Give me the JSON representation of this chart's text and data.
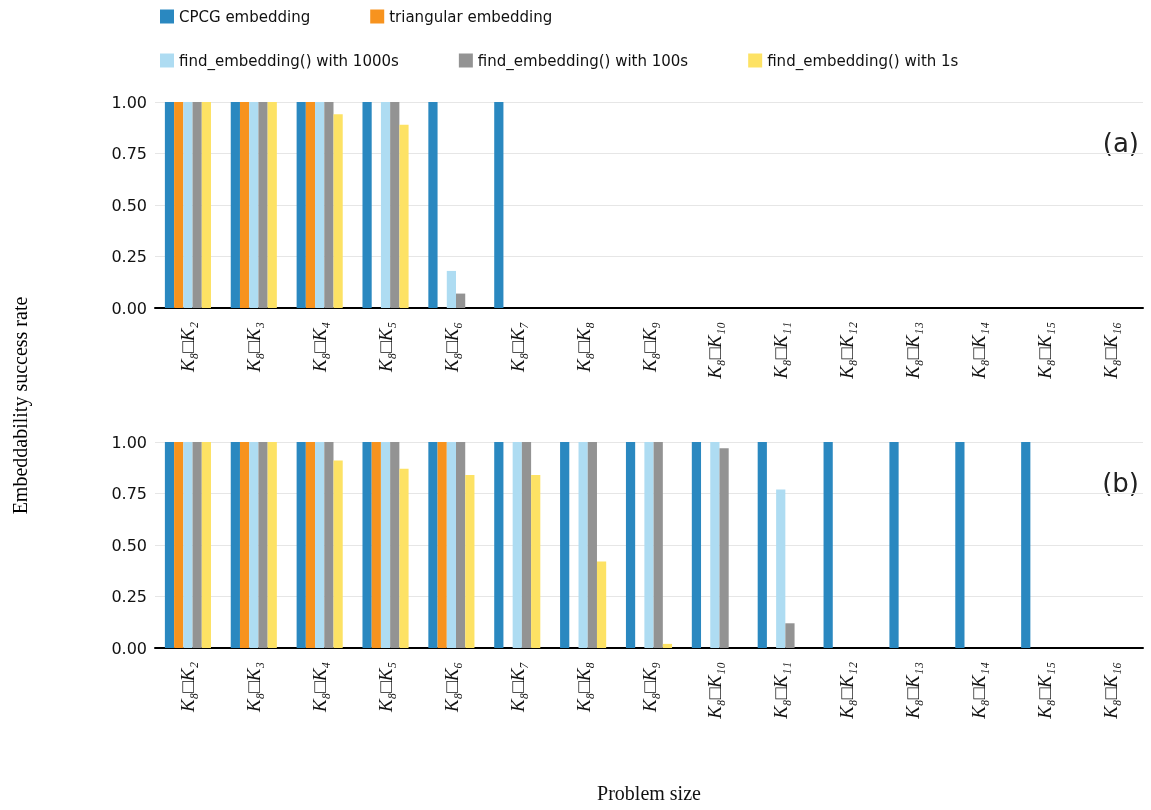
{
  "chart_data": [
    {
      "type": "bar",
      "categories": [
        "K₈□K₂",
        "K₈□K₃",
        "K₈□K₄",
        "K₈□K₅",
        "K₈□K₆",
        "K₈□K₇",
        "K₈□K₈",
        "K₈□K₉",
        "K₈□K₁₀",
        "K₈□K₁₁",
        "K₈□K₁₂",
        "K₈□K₁₃",
        "K₈□K₁₄",
        "K₈□K₁₅",
        "K₈□K₁₆"
      ],
      "series": [
        {
          "name": "CPCG embedding",
          "color": "#2a88c0",
          "values": [
            1,
            1,
            1,
            1,
            1,
            1,
            0,
            0,
            0,
            0,
            0,
            0,
            0,
            0,
            0
          ]
        },
        {
          "name": "triangular embedding",
          "color": "#f7931e",
          "values": [
            1,
            1,
            1,
            0,
            0,
            0,
            0,
            0,
            0,
            0,
            0,
            0,
            0,
            0,
            0
          ]
        },
        {
          "name": "find_embedding() with 1000s",
          "color": "#aedcf2",
          "values": [
            1,
            1,
            1,
            1,
            0.18,
            0,
            0,
            0,
            0,
            0,
            0,
            0,
            0,
            0,
            0
          ]
        },
        {
          "name": "find_embedding() with 100s",
          "color": "#939393",
          "values": [
            1,
            1,
            1,
            1,
            0.07,
            0,
            0,
            0,
            0,
            0,
            0,
            0,
            0,
            0,
            0
          ]
        },
        {
          "name": "find_embedding() with 1s",
          "color": "#fde264",
          "values": [
            1,
            1,
            0.94,
            0.89,
            0,
            0,
            0,
            0,
            0,
            0,
            0,
            0,
            0,
            0,
            0
          ]
        }
      ],
      "ylim": [
        0,
        1
      ],
      "yticks": [
        {
          "value": 0,
          "label": "0.00"
        },
        {
          "value": 0.25,
          "label": "0.25"
        },
        {
          "value": 0.5,
          "label": "0.50"
        },
        {
          "value": 0.75,
          "label": "0.75"
        },
        {
          "value": 1,
          "label": "1.00"
        }
      ],
      "grid": "y",
      "legend": "top",
      "annotations": [
        "(a)"
      ]
    },
    {
      "type": "bar",
      "categories": [
        "K₈□K₂",
        "K₈□K₃",
        "K₈□K₄",
        "K₈□K₅",
        "K₈□K₆",
        "K₈□K₇",
        "K₈□K₈",
        "K₈□K₉",
        "K₈□K₁₀",
        "K₈□K₁₁",
        "K₈□K₁₂",
        "K₈□K₁₃",
        "K₈□K₁₄",
        "K₈□K₁₅",
        "K₈□K₁₆"
      ],
      "series": [
        {
          "color": "#2a88c0",
          "values": [
            1,
            1,
            1,
            1,
            1,
            1,
            1,
            1,
            1,
            1,
            1,
            1,
            1,
            1,
            0
          ]
        },
        {
          "color": "#f7931e",
          "values": [
            1,
            1,
            1,
            1,
            1,
            0,
            0,
            0,
            0,
            0,
            0,
            0,
            0,
            0,
            0
          ]
        },
        {
          "color": "#aedcf2",
          "values": [
            1,
            1,
            1,
            1,
            1,
            1,
            1,
            1,
            1,
            0.77,
            0,
            0,
            0,
            0,
            0
          ]
        },
        {
          "color": "#939393",
          "values": [
            1,
            1,
            1,
            1,
            1,
            1,
            1,
            1,
            0.97,
            0.12,
            0,
            0,
            0,
            0,
            0
          ]
        },
        {
          "color": "#fde264",
          "values": [
            1,
            1,
            0.91,
            0.87,
            0.84,
            0.84,
            0.42,
            0.02,
            0,
            0,
            0,
            0,
            0,
            0,
            0
          ]
        }
      ],
      "ylim": [
        0,
        1
      ],
      "yticks": [
        {
          "value": 0,
          "label": "0.00"
        },
        {
          "value": 0.25,
          "label": "0.25"
        },
        {
          "value": 0.5,
          "label": "0.50"
        },
        {
          "value": 0.75,
          "label": "0.75"
        },
        {
          "value": 1,
          "label": "1.00"
        }
      ],
      "grid": "y",
      "xlabel": "Problem size",
      "ylabel": "Embeddability success rate",
      "annotations": [
        "(b)"
      ]
    }
  ]
}
